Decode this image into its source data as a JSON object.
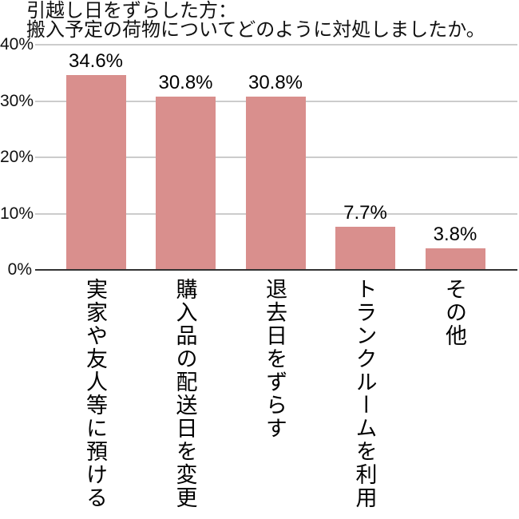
{
  "title": {
    "line1": "引越し日をずらした方：",
    "line2": "搬入予定の荷物についてどのように対処しましたか。"
  },
  "chart_data": {
    "type": "bar",
    "title": "引越し日をずらした方：搬入予定の荷物についてどのように対処しましたか。",
    "categories": [
      "実家や友人等に預ける",
      "購入品の配送日を変更",
      "退去日をずらす",
      "トランクルームを利用",
      "その他"
    ],
    "values": [
      34.6,
      30.8,
      30.8,
      7.7,
      3.8
    ],
    "value_labels": [
      "34.6%",
      "30.8%",
      "30.8%",
      "7.7%",
      "3.8%"
    ],
    "xlabel": "",
    "ylabel": "",
    "ylim": [
      0,
      40
    ],
    "yticks": [
      0,
      10,
      20,
      30,
      40
    ],
    "ytick_labels": [
      "0%",
      "10%",
      "20%",
      "30%",
      "40%"
    ],
    "grid": true,
    "legend": false,
    "orientation": "vertical",
    "category_text_direction": "vertical-upright"
  },
  "colors": {
    "bar": "#d98f8d",
    "gridline": "#cccccc",
    "axis_line": "#333333",
    "text": "#000000",
    "background": "#ffffff"
  }
}
